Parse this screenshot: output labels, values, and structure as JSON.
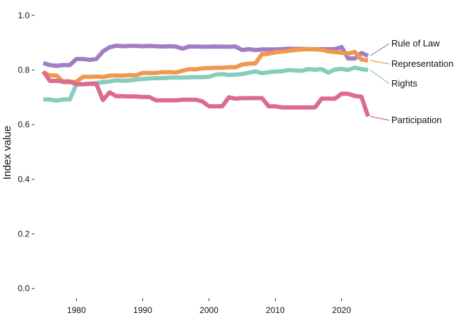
{
  "chart_data": {
    "type": "line",
    "title": "",
    "xlabel": "",
    "ylabel": "Index value",
    "xlim": [
      1974,
      2034
    ],
    "ylim": [
      -0.02,
      1.02
    ],
    "xticks": [
      1980,
      1990,
      2000,
      2010,
      2020
    ],
    "yticks": [
      0.0,
      0.2,
      0.4,
      0.6,
      0.8,
      1.0
    ],
    "ytick_labels": [
      "0.0",
      "0.2",
      "0.4",
      "0.6",
      "0.8",
      "1.0"
    ],
    "grid": false,
    "legend": "direct labels at right end of lines",
    "x": [
      1975,
      1976,
      1977,
      1978,
      1979,
      1980,
      1981,
      1982,
      1983,
      1984,
      1985,
      1986,
      1987,
      1988,
      1989,
      1990,
      1991,
      1992,
      1993,
      1994,
      1995,
      1996,
      1997,
      1998,
      1999,
      2000,
      2001,
      2002,
      2003,
      2004,
      2005,
      2006,
      2007,
      2008,
      2009,
      2010,
      2011,
      2012,
      2013,
      2014,
      2015,
      2016,
      2017,
      2018,
      2019,
      2020,
      2021,
      2022,
      2023,
      2024
    ],
    "series": [
      {
        "name": "Rule of Law",
        "color": "#A27DC4",
        "values": [
          0.825,
          0.818,
          0.815,
          0.818,
          0.818,
          0.84,
          0.84,
          0.837,
          0.84,
          0.868,
          0.883,
          0.889,
          0.887,
          0.888,
          0.888,
          0.887,
          0.888,
          0.887,
          0.886,
          0.887,
          0.886,
          0.878,
          0.886,
          0.886,
          0.885,
          0.885,
          0.886,
          0.885,
          0.885,
          0.886,
          0.873,
          0.876,
          0.873,
          0.875,
          0.875,
          0.875,
          0.876,
          0.878,
          0.877,
          0.877,
          0.876,
          0.876,
          0.876,
          0.876,
          0.876,
          0.884,
          0.842,
          0.842,
          0.862,
          0.852
        ]
      },
      {
        "name": "Representation",
        "color": "#F0984E",
        "values": [
          0.79,
          0.78,
          0.78,
          0.755,
          0.755,
          0.757,
          0.775,
          0.775,
          0.776,
          0.774,
          0.779,
          0.78,
          0.779,
          0.781,
          0.78,
          0.789,
          0.789,
          0.789,
          0.792,
          0.792,
          0.791,
          0.797,
          0.803,
          0.802,
          0.806,
          0.807,
          0.808,
          0.808,
          0.81,
          0.81,
          0.82,
          0.823,
          0.824,
          0.858,
          0.859,
          0.865,
          0.867,
          0.87,
          0.873,
          0.875,
          0.876,
          0.875,
          0.874,
          0.868,
          0.866,
          0.863,
          0.86,
          0.866,
          0.838,
          0.835
        ]
      },
      {
        "name": "Rights",
        "color": "#86CDBC",
        "values": [
          0.692,
          0.692,
          0.688,
          0.692,
          0.692,
          0.748,
          0.748,
          0.75,
          0.752,
          0.755,
          0.758,
          0.762,
          0.76,
          0.762,
          0.765,
          0.767,
          0.769,
          0.77,
          0.77,
          0.772,
          0.772,
          0.772,
          0.773,
          0.774,
          0.774,
          0.775,
          0.783,
          0.785,
          0.782,
          0.783,
          0.785,
          0.79,
          0.795,
          0.788,
          0.792,
          0.794,
          0.795,
          0.8,
          0.798,
          0.797,
          0.803,
          0.801,
          0.803,
          0.79,
          0.802,
          0.804,
          0.8,
          0.809,
          0.803,
          0.8
        ]
      },
      {
        "name": "Participation",
        "color": "#DD6B8E",
        "values": [
          0.795,
          0.76,
          0.76,
          0.758,
          0.758,
          0.748,
          0.748,
          0.749,
          0.749,
          0.69,
          0.718,
          0.704,
          0.704,
          0.703,
          0.703,
          0.701,
          0.701,
          0.689,
          0.689,
          0.689,
          0.689,
          0.691,
          0.691,
          0.691,
          0.685,
          0.667,
          0.667,
          0.667,
          0.7,
          0.695,
          0.697,
          0.697,
          0.697,
          0.697,
          0.667,
          0.667,
          0.663,
          0.663,
          0.663,
          0.663,
          0.663,
          0.663,
          0.695,
          0.695,
          0.695,
          0.713,
          0.713,
          0.705,
          0.702,
          0.63
        ]
      }
    ]
  }
}
